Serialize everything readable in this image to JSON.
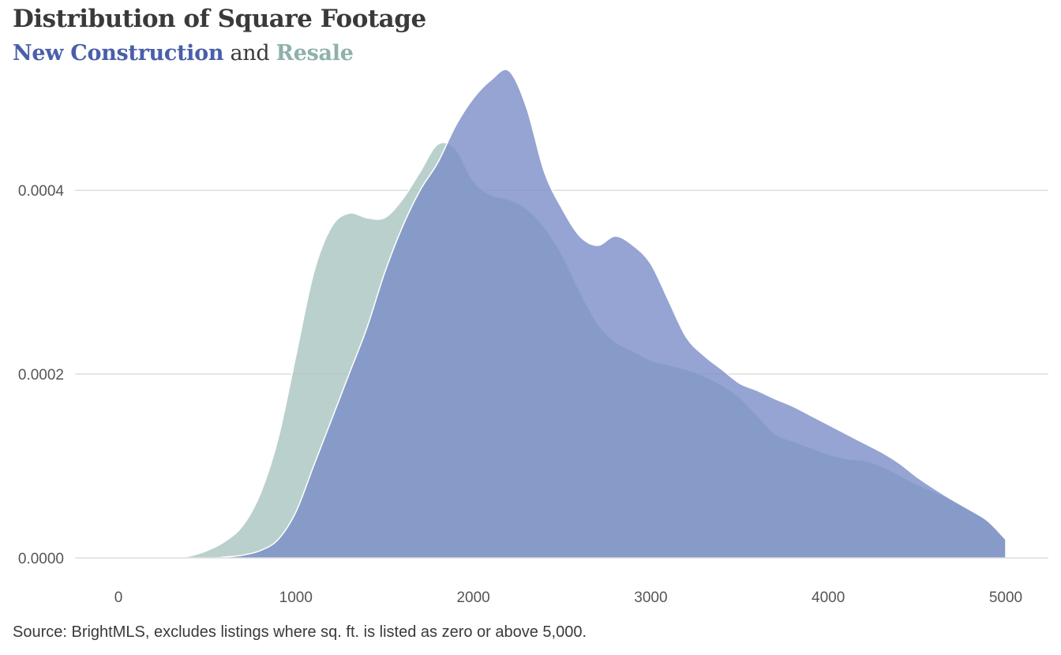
{
  "header": {
    "title": "Distribution of Square Footage",
    "subtitle_a": "New Construction",
    "subtitle_and": "and",
    "subtitle_b": "Resale"
  },
  "source": "Source: BrightMLS,  excludes listings where sq. ft. is listed as zero or above 5,000.",
  "chart_data": {
    "type": "area",
    "xlim": [
      0,
      5000
    ],
    "ylim": [
      0,
      0.00054
    ],
    "x_ticks": [
      {
        "value": 0,
        "label": "0"
      },
      {
        "value": 1000,
        "label": "1000"
      },
      {
        "value": 2000,
        "label": "2000"
      },
      {
        "value": 3000,
        "label": "3000"
      },
      {
        "value": 4000,
        "label": "4000"
      },
      {
        "value": 5000,
        "label": "5000"
      }
    ],
    "y_ticks": [
      {
        "value": 0,
        "label": "0.0000"
      },
      {
        "value": 0.0002,
        "label": "0.0002"
      },
      {
        "value": 0.0004,
        "label": "0.0004"
      }
    ],
    "grid": "horizontal",
    "series": [
      {
        "name": "Resale",
        "color": "#a9c4c1",
        "x": [
          0,
          300,
          400,
          500,
          600,
          700,
          800,
          900,
          1000,
          1100,
          1200,
          1300,
          1400,
          1500,
          1600,
          1700,
          1800,
          1900,
          2000,
          2100,
          2200,
          2300,
          2400,
          2500,
          2600,
          2700,
          2800,
          2900,
          3000,
          3100,
          3200,
          3300,
          3400,
          3500,
          3600,
          3700,
          3800,
          3900,
          4000,
          4100,
          4200,
          4300,
          4400,
          4500,
          4600,
          4700,
          4800,
          4900,
          5000
        ],
        "y": [
          0,
          0,
          2e-06,
          8e-06,
          1.8e-05,
          3.5e-05,
          7e-05,
          0.00013,
          0.00022,
          0.00031,
          0.00036,
          0.000375,
          0.00037,
          0.00037,
          0.00039,
          0.00042,
          0.00045,
          0.000445,
          0.00041,
          0.000395,
          0.00039,
          0.00038,
          0.00036,
          0.00033,
          0.00029,
          0.000255,
          0.000235,
          0.000225,
          0.000215,
          0.00021,
          0.000205,
          0.000198,
          0.000188,
          0.000175,
          0.000155,
          0.000135,
          0.000127,
          0.00012,
          0.000113,
          0.000108,
          0.000106,
          0.0001,
          9e-05,
          8e-05,
          7.2e-05,
          6.3e-05,
          5.2e-05,
          4e-05,
          2e-05
        ]
      },
      {
        "name": "New Construction",
        "color": "#7b8dc7",
        "x": [
          0,
          500,
          600,
          700,
          800,
          900,
          1000,
          1100,
          1200,
          1300,
          1400,
          1500,
          1600,
          1700,
          1800,
          1900,
          2000,
          2100,
          2200,
          2300,
          2400,
          2500,
          2600,
          2700,
          2800,
          2900,
          3000,
          3100,
          3200,
          3300,
          3400,
          3500,
          3600,
          3700,
          3800,
          3900,
          4000,
          4100,
          4200,
          4300,
          4400,
          4500,
          4600,
          4700,
          4800,
          4900,
          5000
        ],
        "y": [
          0,
          0,
          1e-06,
          3e-06,
          8e-06,
          2e-05,
          5e-05,
          0.0001,
          0.00015,
          0.0002,
          0.00025,
          0.00031,
          0.00036,
          0.0004,
          0.00043,
          0.00047,
          0.0005,
          0.00052,
          0.00053,
          0.00049,
          0.00042,
          0.00038,
          0.00035,
          0.00034,
          0.00035,
          0.00034,
          0.00032,
          0.00028,
          0.00024,
          0.00022,
          0.000205,
          0.00019,
          0.000182,
          0.000173,
          0.000165,
          0.000155,
          0.000145,
          0.000135,
          0.000125,
          0.000115,
          0.000103,
          8.8e-05,
          7.5e-05,
          6.3e-05,
          5.2e-05,
          4e-05,
          2e-05
        ]
      }
    ]
  }
}
